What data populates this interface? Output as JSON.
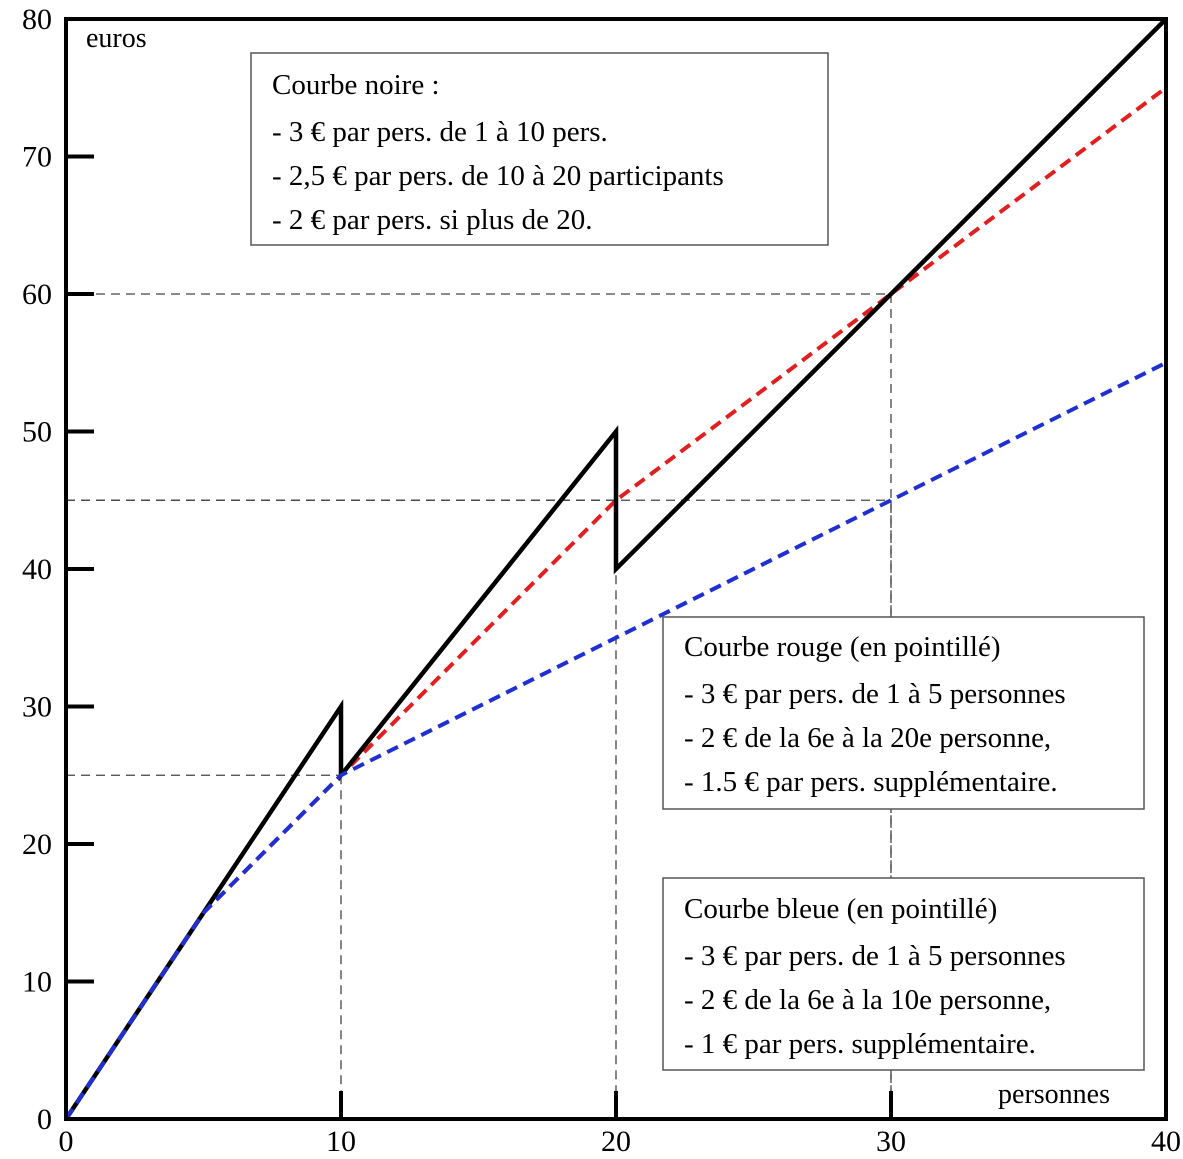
{
  "chart_data": {
    "type": "line",
    "xlabel": "personnes",
    "ylabel": "euros",
    "xlim": [
      0,
      40
    ],
    "ylim": [
      0,
      80
    ],
    "x_ticks": [
      0,
      10,
      20,
      30,
      40
    ],
    "y_ticks": [
      0,
      10,
      20,
      30,
      40,
      50,
      60,
      70,
      80
    ],
    "grid": false,
    "series": [
      {
        "name": "Courbe noire",
        "color": "#000000",
        "style": "solid",
        "points": [
          [
            0,
            0
          ],
          [
            10,
            30
          ],
          [
            10,
            25
          ],
          [
            20,
            50
          ],
          [
            20,
            40
          ],
          [
            40,
            80
          ]
        ]
      },
      {
        "name": "Courbe rouge (en pointillé)",
        "color": "#e02020",
        "style": "dashed",
        "points": [
          [
            0,
            0
          ],
          [
            5,
            15
          ],
          [
            20,
            45
          ],
          [
            40,
            75
          ]
        ]
      },
      {
        "name": "Courbe bleue (en pointillé)",
        "color": "#2030d0",
        "style": "dashed",
        "points": [
          [
            0,
            0
          ],
          [
            5,
            15
          ],
          [
            10,
            25
          ],
          [
            40,
            55
          ]
        ]
      }
    ],
    "reference_lines": [
      {
        "x": 10,
        "y": 25
      },
      {
        "x": 20,
        "y": 45
      },
      {
        "x": 30,
        "y": 60
      },
      {
        "x": 30,
        "y": 45
      }
    ],
    "annotations": [
      {
        "title": "Courbe noire :",
        "lines": [
          "- 3 € par pers. de 1 à 10 pers.",
          "- 2,5 € par pers. de 10 à 20 participants",
          "- 2 € par pers. si plus de 20."
        ]
      },
      {
        "title": "Courbe rouge (en pointillé)",
        "lines": [
          "- 3 € par pers. de 1 à 5 personnes",
          "- 2 € de la 6e à la 20e personne,",
          "- 1.5 € par pers. supplémentaire."
        ]
      },
      {
        "title": "Courbe bleue (en pointillé)",
        "lines": [
          "- 3 € par pers. de 1 à 5 personnes",
          "- 2 € de la 6e à la 10e personne,",
          "- 1 € par pers. supplémentaire."
        ]
      }
    ]
  }
}
